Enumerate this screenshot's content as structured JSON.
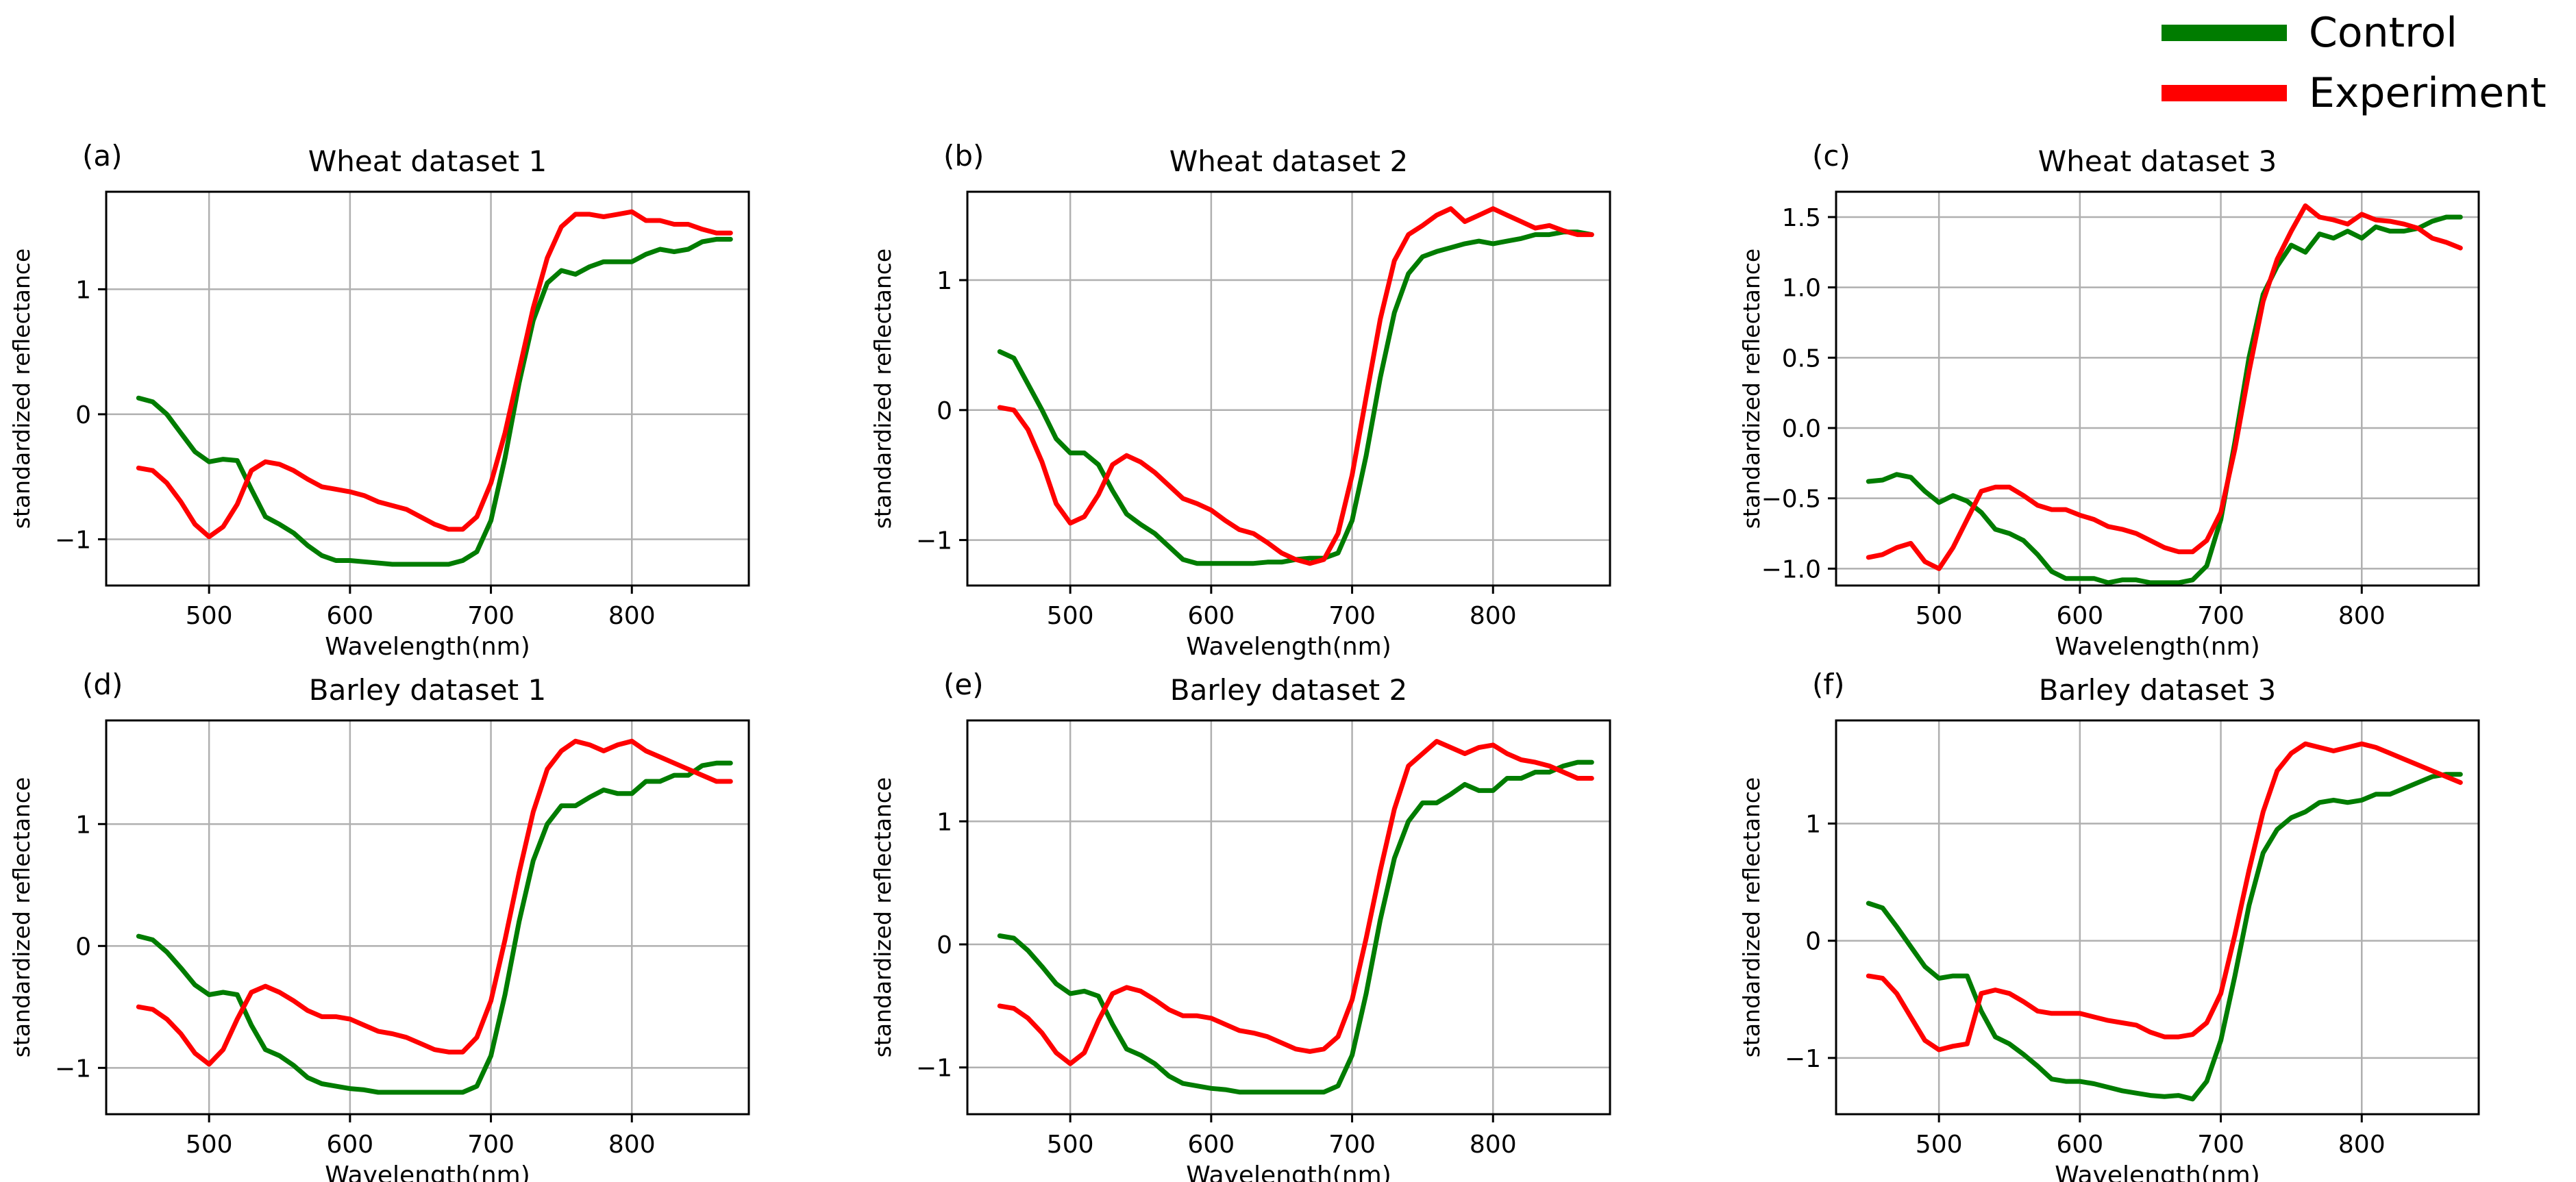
{
  "legend": [
    {
      "label": "Control",
      "color": "#007c00"
    },
    {
      "label": "Experiment",
      "color": "#ff0000"
    }
  ],
  "series_colors": {
    "control": "#007c00",
    "experiment": "#ff0000"
  },
  "chart_data": [
    {
      "type": "line",
      "panel_label": "(a)",
      "title": "Wheat dataset 1",
      "xlabel": "Wavelength(nm)",
      "ylabel": "standardized reflectance",
      "xlim": [
        427,
        883
      ],
      "ylim": [
        -1.37,
        1.78
      ],
      "xticks": [
        500,
        600,
        700,
        800
      ],
      "xtick_labels": [
        "500",
        "600",
        "700",
        "800"
      ],
      "yticks": [
        -1,
        0,
        1
      ],
      "ytick_labels": [
        "−1",
        "0",
        "1"
      ],
      "x": [
        450,
        460,
        470,
        480,
        490,
        500,
        510,
        520,
        530,
        540,
        550,
        560,
        570,
        580,
        590,
        600,
        610,
        620,
        630,
        640,
        650,
        660,
        670,
        680,
        690,
        700,
        710,
        720,
        730,
        740,
        750,
        760,
        770,
        780,
        790,
        800,
        810,
        820,
        830,
        840,
        850,
        860,
        870
      ],
      "series": [
        {
          "name": "Control",
          "values": [
            0.13,
            0.1,
            0.0,
            -0.15,
            -0.3,
            -0.38,
            -0.36,
            -0.37,
            -0.6,
            -0.82,
            -0.88,
            -0.95,
            -1.05,
            -1.13,
            -1.17,
            -1.17,
            -1.18,
            -1.19,
            -1.2,
            -1.2,
            -1.2,
            -1.2,
            -1.2,
            -1.17,
            -1.1,
            -0.85,
            -0.35,
            0.25,
            0.75,
            1.05,
            1.15,
            1.12,
            1.18,
            1.22,
            1.22,
            1.22,
            1.28,
            1.32,
            1.3,
            1.32,
            1.38,
            1.4,
            1.4
          ]
        },
        {
          "name": "Experiment",
          "values": [
            -0.43,
            -0.45,
            -0.55,
            -0.7,
            -0.88,
            -0.98,
            -0.9,
            -0.72,
            -0.45,
            -0.38,
            -0.4,
            -0.45,
            -0.52,
            -0.58,
            -0.6,
            -0.62,
            -0.65,
            -0.7,
            -0.73,
            -0.76,
            -0.82,
            -0.88,
            -0.92,
            -0.92,
            -0.82,
            -0.55,
            -0.15,
            0.35,
            0.85,
            1.25,
            1.5,
            1.6,
            1.6,
            1.58,
            1.6,
            1.62,
            1.55,
            1.55,
            1.52,
            1.52,
            1.48,
            1.45,
            1.45
          ]
        }
      ]
    },
    {
      "type": "line",
      "panel_label": "(b)",
      "title": "Wheat dataset 2",
      "xlabel": "Wavelength(nm)",
      "ylabel": "standardized reflectance",
      "xlim": [
        427,
        883
      ],
      "ylim": [
        -1.35,
        1.68
      ],
      "xticks": [
        500,
        600,
        700,
        800
      ],
      "xtick_labels": [
        "500",
        "600",
        "700",
        "800"
      ],
      "yticks": [
        -1,
        0,
        1
      ],
      "ytick_labels": [
        "−1",
        "0",
        "1"
      ],
      "x": [
        450,
        460,
        470,
        480,
        490,
        500,
        510,
        520,
        530,
        540,
        550,
        560,
        570,
        580,
        590,
        600,
        610,
        620,
        630,
        640,
        650,
        660,
        670,
        680,
        690,
        700,
        710,
        720,
        730,
        740,
        750,
        760,
        770,
        780,
        790,
        800,
        810,
        820,
        830,
        840,
        850,
        860,
        870
      ],
      "series": [
        {
          "name": "Control",
          "values": [
            0.45,
            0.4,
            0.2,
            0.0,
            -0.22,
            -0.33,
            -0.33,
            -0.42,
            -0.62,
            -0.8,
            -0.88,
            -0.95,
            -1.05,
            -1.15,
            -1.18,
            -1.18,
            -1.18,
            -1.18,
            -1.18,
            -1.17,
            -1.17,
            -1.15,
            -1.14,
            -1.14,
            -1.1,
            -0.85,
            -0.35,
            0.25,
            0.75,
            1.05,
            1.18,
            1.22,
            1.25,
            1.28,
            1.3,
            1.28,
            1.3,
            1.32,
            1.35,
            1.35,
            1.37,
            1.37,
            1.35
          ]
        },
        {
          "name": "Experiment",
          "values": [
            0.02,
            0.0,
            -0.15,
            -0.4,
            -0.72,
            -0.87,
            -0.82,
            -0.65,
            -0.42,
            -0.35,
            -0.4,
            -0.48,
            -0.58,
            -0.68,
            -0.72,
            -0.77,
            -0.85,
            -0.92,
            -0.95,
            -1.02,
            -1.1,
            -1.15,
            -1.18,
            -1.15,
            -0.95,
            -0.5,
            0.1,
            0.7,
            1.15,
            1.35,
            1.42,
            1.5,
            1.55,
            1.45,
            1.5,
            1.55,
            1.5,
            1.45,
            1.4,
            1.42,
            1.38,
            1.35,
            1.35
          ]
        }
      ]
    },
    {
      "type": "line",
      "panel_label": "(c)",
      "title": "Wheat dataset 3",
      "xlabel": "Wavelength(nm)",
      "ylabel": "standardized reflectance",
      "xlim": [
        427,
        883
      ],
      "ylim": [
        -1.12,
        1.68
      ],
      "xticks": [
        500,
        600,
        700,
        800
      ],
      "xtick_labels": [
        "500",
        "600",
        "700",
        "800"
      ],
      "yticks": [
        -1.0,
        -0.5,
        0.0,
        0.5,
        1.0,
        1.5
      ],
      "ytick_labels": [
        "−1.0",
        "−0.5",
        "0.0",
        "0.5",
        "1.0",
        "1.5"
      ],
      "x": [
        450,
        460,
        470,
        480,
        490,
        500,
        510,
        520,
        530,
        540,
        550,
        560,
        570,
        580,
        590,
        600,
        610,
        620,
        630,
        640,
        650,
        660,
        670,
        680,
        690,
        700,
        710,
        720,
        730,
        740,
        750,
        760,
        770,
        780,
        790,
        800,
        810,
        820,
        830,
        840,
        850,
        860,
        870
      ],
      "series": [
        {
          "name": "Control",
          "values": [
            -0.38,
            -0.37,
            -0.33,
            -0.35,
            -0.45,
            -0.53,
            -0.48,
            -0.52,
            -0.6,
            -0.72,
            -0.75,
            -0.8,
            -0.9,
            -1.02,
            -1.07,
            -1.07,
            -1.07,
            -1.1,
            -1.08,
            -1.08,
            -1.1,
            -1.1,
            -1.1,
            -1.08,
            -0.98,
            -0.65,
            -0.1,
            0.5,
            0.95,
            1.15,
            1.3,
            1.25,
            1.38,
            1.35,
            1.4,
            1.35,
            1.43,
            1.4,
            1.4,
            1.42,
            1.47,
            1.5,
            1.5
          ]
        },
        {
          "name": "Experiment",
          "values": [
            -0.92,
            -0.9,
            -0.85,
            -0.82,
            -0.95,
            -1.0,
            -0.85,
            -0.65,
            -0.45,
            -0.42,
            -0.42,
            -0.48,
            -0.55,
            -0.58,
            -0.58,
            -0.62,
            -0.65,
            -0.7,
            -0.72,
            -0.75,
            -0.8,
            -0.85,
            -0.88,
            -0.88,
            -0.8,
            -0.6,
            -0.15,
            0.4,
            0.9,
            1.2,
            1.4,
            1.58,
            1.5,
            1.48,
            1.45,
            1.52,
            1.48,
            1.47,
            1.45,
            1.42,
            1.35,
            1.32,
            1.28
          ]
        }
      ]
    },
    {
      "type": "line",
      "panel_label": "(d)",
      "title": "Barley dataset 1",
      "xlabel": "Wavelength(nm)",
      "ylabel": "standardized reflectance",
      "xlim": [
        427,
        883
      ],
      "ylim": [
        -1.38,
        1.85
      ],
      "xticks": [
        500,
        600,
        700,
        800
      ],
      "xtick_labels": [
        "500",
        "600",
        "700",
        "800"
      ],
      "yticks": [
        -1,
        0,
        1
      ],
      "ytick_labels": [
        "−1",
        "0",
        "1"
      ],
      "x": [
        450,
        460,
        470,
        480,
        490,
        500,
        510,
        520,
        530,
        540,
        550,
        560,
        570,
        580,
        590,
        600,
        610,
        620,
        630,
        640,
        650,
        660,
        670,
        680,
        690,
        700,
        710,
        720,
        730,
        740,
        750,
        760,
        770,
        780,
        790,
        800,
        810,
        820,
        830,
        840,
        850,
        860,
        870
      ],
      "series": [
        {
          "name": "Control",
          "values": [
            0.08,
            0.05,
            -0.05,
            -0.18,
            -0.32,
            -0.4,
            -0.38,
            -0.4,
            -0.65,
            -0.85,
            -0.9,
            -0.98,
            -1.08,
            -1.13,
            -1.15,
            -1.17,
            -1.18,
            -1.2,
            -1.2,
            -1.2,
            -1.2,
            -1.2,
            -1.2,
            -1.2,
            -1.15,
            -0.9,
            -0.4,
            0.2,
            0.7,
            1.0,
            1.15,
            1.15,
            1.22,
            1.28,
            1.25,
            1.25,
            1.35,
            1.35,
            1.4,
            1.4,
            1.48,
            1.5,
            1.5
          ]
        },
        {
          "name": "Experiment",
          "values": [
            -0.5,
            -0.52,
            -0.6,
            -0.72,
            -0.88,
            -0.97,
            -0.85,
            -0.6,
            -0.38,
            -0.33,
            -0.38,
            -0.45,
            -0.53,
            -0.58,
            -0.58,
            -0.6,
            -0.65,
            -0.7,
            -0.72,
            -0.75,
            -0.8,
            -0.85,
            -0.87,
            -0.87,
            -0.75,
            -0.45,
            0.05,
            0.6,
            1.1,
            1.45,
            1.6,
            1.68,
            1.65,
            1.6,
            1.65,
            1.68,
            1.6,
            1.55,
            1.5,
            1.45,
            1.4,
            1.35,
            1.35
          ]
        }
      ]
    },
    {
      "type": "line",
      "panel_label": "(e)",
      "title": "Barley dataset 2",
      "xlabel": "Wavelength(nm)",
      "ylabel": "standardized reflectance",
      "xlim": [
        427,
        883
      ],
      "ylim": [
        -1.38,
        1.82
      ],
      "xticks": [
        500,
        600,
        700,
        800
      ],
      "xtick_labels": [
        "500",
        "600",
        "700",
        "800"
      ],
      "yticks": [
        -1,
        0,
        1
      ],
      "ytick_labels": [
        "−1",
        "0",
        "1"
      ],
      "x": [
        450,
        460,
        470,
        480,
        490,
        500,
        510,
        520,
        530,
        540,
        550,
        560,
        570,
        580,
        590,
        600,
        610,
        620,
        630,
        640,
        650,
        660,
        670,
        680,
        690,
        700,
        710,
        720,
        730,
        740,
        750,
        760,
        770,
        780,
        790,
        800,
        810,
        820,
        830,
        840,
        850,
        860,
        870
      ],
      "series": [
        {
          "name": "Control",
          "values": [
            0.07,
            0.05,
            -0.05,
            -0.18,
            -0.32,
            -0.4,
            -0.38,
            -0.42,
            -0.65,
            -0.85,
            -0.9,
            -0.97,
            -1.07,
            -1.13,
            -1.15,
            -1.17,
            -1.18,
            -1.2,
            -1.2,
            -1.2,
            -1.2,
            -1.2,
            -1.2,
            -1.2,
            -1.15,
            -0.9,
            -0.4,
            0.2,
            0.7,
            1.0,
            1.15,
            1.15,
            1.22,
            1.3,
            1.25,
            1.25,
            1.35,
            1.35,
            1.4,
            1.4,
            1.45,
            1.48,
            1.48
          ]
        },
        {
          "name": "Experiment",
          "values": [
            -0.5,
            -0.52,
            -0.6,
            -0.72,
            -0.88,
            -0.97,
            -0.88,
            -0.62,
            -0.4,
            -0.35,
            -0.38,
            -0.45,
            -0.53,
            -0.58,
            -0.58,
            -0.6,
            -0.65,
            -0.7,
            -0.72,
            -0.75,
            -0.8,
            -0.85,
            -0.87,
            -0.85,
            -0.75,
            -0.45,
            0.05,
            0.6,
            1.1,
            1.45,
            1.55,
            1.65,
            1.6,
            1.55,
            1.6,
            1.62,
            1.55,
            1.5,
            1.48,
            1.45,
            1.4,
            1.35,
            1.35
          ]
        }
      ]
    },
    {
      "type": "line",
      "panel_label": "(f)",
      "title": "Barley dataset 3",
      "xlabel": "Wavelength(nm)",
      "ylabel": "standardized reflectance",
      "xlim": [
        427,
        883
      ],
      "ylim": [
        -1.48,
        1.88
      ],
      "xticks": [
        500,
        600,
        700,
        800
      ],
      "xtick_labels": [
        "500",
        "600",
        "700",
        "800"
      ],
      "yticks": [
        -1,
        0,
        1
      ],
      "ytick_labels": [
        "−1",
        "0",
        "1"
      ],
      "x": [
        450,
        460,
        470,
        480,
        490,
        500,
        510,
        520,
        530,
        540,
        550,
        560,
        570,
        580,
        590,
        600,
        610,
        620,
        630,
        640,
        650,
        660,
        670,
        680,
        690,
        700,
        710,
        720,
        730,
        740,
        750,
        760,
        770,
        780,
        790,
        800,
        810,
        820,
        830,
        840,
        850,
        860,
        870
      ],
      "series": [
        {
          "name": "Control",
          "values": [
            0.32,
            0.28,
            0.12,
            -0.05,
            -0.22,
            -0.32,
            -0.3,
            -0.3,
            -0.6,
            -0.82,
            -0.88,
            -0.97,
            -1.07,
            -1.18,
            -1.2,
            -1.2,
            -1.22,
            -1.25,
            -1.28,
            -1.3,
            -1.32,
            -1.33,
            -1.32,
            -1.35,
            -1.2,
            -0.85,
            -0.3,
            0.3,
            0.75,
            0.95,
            1.05,
            1.1,
            1.18,
            1.2,
            1.18,
            1.2,
            1.25,
            1.25,
            1.3,
            1.35,
            1.4,
            1.42,
            1.42
          ]
        },
        {
          "name": "Experiment",
          "values": [
            -0.3,
            -0.32,
            -0.45,
            -0.65,
            -0.85,
            -0.93,
            -0.9,
            -0.88,
            -0.45,
            -0.42,
            -0.45,
            -0.52,
            -0.6,
            -0.62,
            -0.62,
            -0.62,
            -0.65,
            -0.68,
            -0.7,
            -0.72,
            -0.78,
            -0.82,
            -0.82,
            -0.8,
            -0.7,
            -0.45,
            0.05,
            0.6,
            1.1,
            1.45,
            1.6,
            1.68,
            1.65,
            1.62,
            1.65,
            1.68,
            1.65,
            1.6,
            1.55,
            1.5,
            1.45,
            1.4,
            1.35
          ]
        }
      ]
    }
  ]
}
